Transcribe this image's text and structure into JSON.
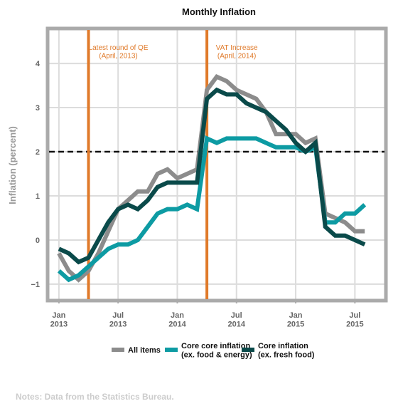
{
  "chart_data": {
    "type": "line",
    "title": "Monthly Inflation",
    "y_label": "Inflation (percent)",
    "x": [
      "2013-01",
      "2013-02",
      "2013-03",
      "2013-04",
      "2013-05",
      "2013-06",
      "2013-07",
      "2013-08",
      "2013-09",
      "2013-10",
      "2013-11",
      "2013-12",
      "2014-01",
      "2014-02",
      "2014-03",
      "2014-04",
      "2014-05",
      "2014-06",
      "2014-07",
      "2014-08",
      "2014-09",
      "2014-10",
      "2014-11",
      "2014-12",
      "2015-01",
      "2015-02",
      "2015-03",
      "2015-04",
      "2015-05",
      "2015-06",
      "2015-07",
      "2015-08"
    ],
    "xlim": [
      "2012-12",
      "2015-10"
    ],
    "xticks": [
      {
        "value": "2013-01",
        "label": "Jan\n2013"
      },
      {
        "value": "2013-07",
        "label": "Jul\n2013"
      },
      {
        "value": "2014-01",
        "label": "Jan\n2014"
      },
      {
        "value": "2014-07",
        "label": "Jul\n2014"
      },
      {
        "value": "2015-01",
        "label": "Jan\n2015"
      },
      {
        "value": "2015-07",
        "label": "Jul\n2015"
      }
    ],
    "ylim": [
      -1.34,
      4.76
    ],
    "yticks": [
      {
        "value": -1,
        "label": "−1"
      },
      0,
      1,
      2,
      3,
      4
    ],
    "grid": true,
    "reference_line": {
      "value": 2,
      "color": "#111111"
    },
    "events": [
      {
        "x": "2013-04",
        "label": "Latest round of QE\n(April, 2013)",
        "color": "#e07a2a"
      },
      {
        "x": "2014-04",
        "label": "VAT Increase\n(April, 2014)",
        "color": "#e07a2a"
      }
    ],
    "series": [
      {
        "name": "All items",
        "color": "#8c8c8c",
        "values": [
          -0.3,
          -0.7,
          -0.9,
          -0.7,
          -0.3,
          0.2,
          0.7,
          0.9,
          1.1,
          1.1,
          1.5,
          1.6,
          1.4,
          1.5,
          1.6,
          3.4,
          3.7,
          3.6,
          3.4,
          3.3,
          3.2,
          2.9,
          2.4,
          2.4,
          2.4,
          2.2,
          2.3,
          0.6,
          0.5,
          0.4,
          0.2,
          0.2
        ]
      },
      {
        "name": "Core core inflation\n(ex. food & energy)",
        "color": "#0d9ba3",
        "values": [
          -0.7,
          -0.9,
          -0.8,
          -0.6,
          -0.4,
          -0.2,
          -0.1,
          -0.1,
          0.0,
          0.3,
          0.6,
          0.7,
          0.7,
          0.8,
          0.7,
          2.3,
          2.2,
          2.3,
          2.3,
          2.3,
          2.3,
          2.2,
          2.1,
          2.1,
          2.1,
          2.0,
          2.1,
          0.4,
          0.4,
          0.6,
          0.6,
          0.8
        ]
      },
      {
        "name": "Core inflation\n(ex. fresh food)",
        "color": "#0a4a4a",
        "values": [
          -0.2,
          -0.3,
          -0.5,
          -0.4,
          0.0,
          0.4,
          0.7,
          0.8,
          0.7,
          0.9,
          1.2,
          1.3,
          1.3,
          1.3,
          1.3,
          3.2,
          3.4,
          3.3,
          3.3,
          3.1,
          3.0,
          2.9,
          2.7,
          2.5,
          2.2,
          2.0,
          2.2,
          0.3,
          0.1,
          0.1,
          0.0,
          -0.1
        ]
      }
    ],
    "note": "Notes: Data from the Statistics Bureau."
  }
}
